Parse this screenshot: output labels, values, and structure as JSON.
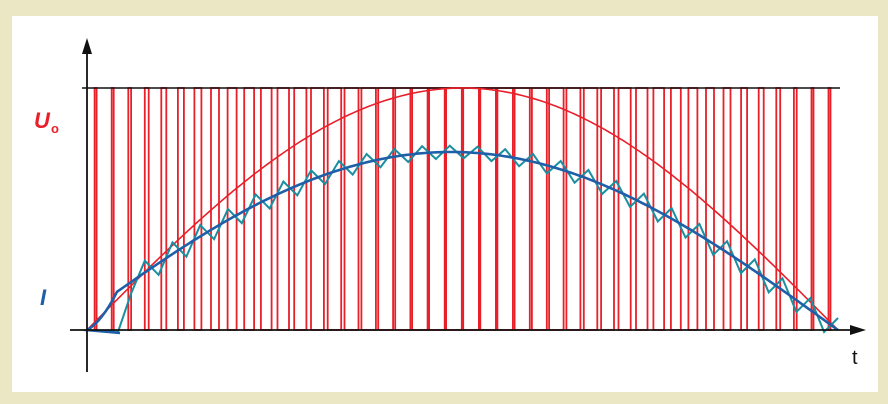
{
  "labels": {
    "u_main": "U",
    "u_sub": "o",
    "current": "I",
    "time_axis": "t"
  },
  "colors": {
    "voltage": "#e8202a",
    "current_ripple": "#1a8fa0",
    "current_avg": "#1f5fa8",
    "axis": "#111111",
    "background": "#ebe6c4",
    "panel": "#ffffff"
  },
  "diagram": {
    "type": "pwm-voltage-and-current",
    "pulse_count": 44,
    "voltage_envelope": "half-sine",
    "current_ripple_cycles": 26
  }
}
